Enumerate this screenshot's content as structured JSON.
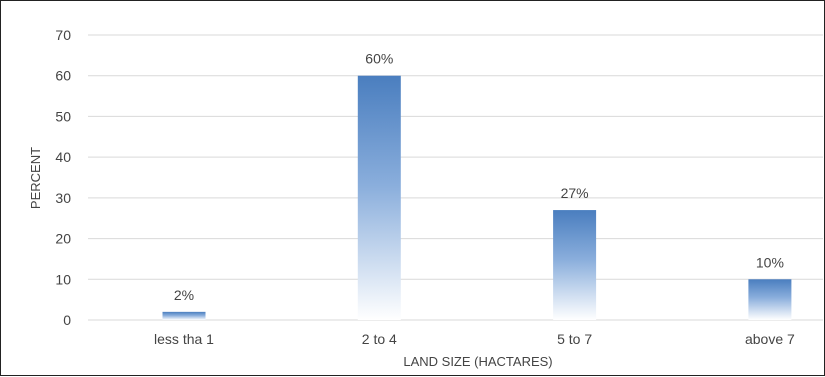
{
  "chart_data": {
    "type": "bar",
    "categories": [
      "less tha 1",
      "2 to 4",
      "5 to 7",
      "above 7"
    ],
    "values": [
      2,
      60,
      27,
      10
    ],
    "data_labels": [
      "2%",
      "60%",
      "27%",
      "10%"
    ],
    "xlabel": "LAND SIZE (HACTARES)",
    "ylabel": "PERCENT",
    "ylim": [
      0,
      70
    ],
    "yticks": [
      0,
      10,
      20,
      30,
      40,
      50,
      60,
      70
    ],
    "grid": true,
    "legend": "none",
    "colors": {
      "bar_top": "#4a7ebf",
      "bar_bottom": "#ffffff",
      "grid": "#d9d9d9"
    }
  }
}
